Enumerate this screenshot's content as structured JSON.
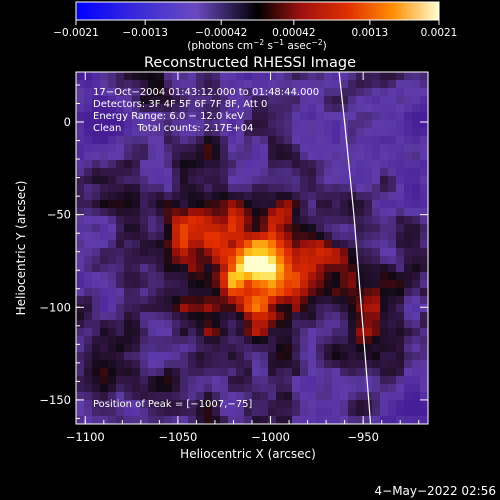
{
  "chart_data": {
    "type": "heatmap",
    "title": "Reconstructed RHESSI Image",
    "xlabel": "Heliocentric X (arcsec)",
    "ylabel": "Heliocentric Y (arcsec)",
    "xlim": [
      -1105,
      -915
    ],
    "ylim": [
      -163,
      27
    ],
    "x_ticks": [
      -1100,
      -1050,
      -1000,
      -950
    ],
    "y_ticks": [
      0,
      -50,
      -100,
      -150
    ],
    "x_tick_labels": [
      "−1100",
      "−1050",
      "−1000",
      "−950"
    ],
    "y_tick_labels": [
      "0",
      "−50",
      "−100",
      "−150"
    ],
    "colorbar": {
      "min": -0.0021,
      "max": 0.0021,
      "ticks": [
        -0.0021,
        -0.0013,
        -0.00042,
        0.00042,
        0.0013,
        0.0021
      ],
      "tick_labels": [
        "−0.0021",
        "−0.0013",
        "−0.00042",
        "0.00042",
        "0.0013",
        "0.0021"
      ],
      "units_text": "(photons cm",
      "units_exp1": "−2",
      "units_mid": " s",
      "units_exp2": "−1",
      "units_mid2": " asec",
      "units_exp3": "−2",
      "units_close": ")"
    },
    "annotations": [
      "17−Oct−2004 01:43:12.000 to 01:48:44.000",
      "Detectors: 3F 4F 5F 6F 7F 8F, Att 0",
      "Energy Range: 6.0 − 12.0 keV",
      "Clean     Total counts: 2.17E+04"
    ],
    "peak_label": "Position of Peak = [−1007,−75]",
    "peak": {
      "x": -1007,
      "y": -75
    },
    "limb_line": [
      [
        -963,
        27
      ],
      [
        -960,
        0
      ],
      [
        -955,
        -50
      ],
      [
        -951,
        -100
      ],
      [
        -946,
        -163
      ]
    ],
    "footer_date": "4−May−2022 02:56",
    "grid": false
  }
}
